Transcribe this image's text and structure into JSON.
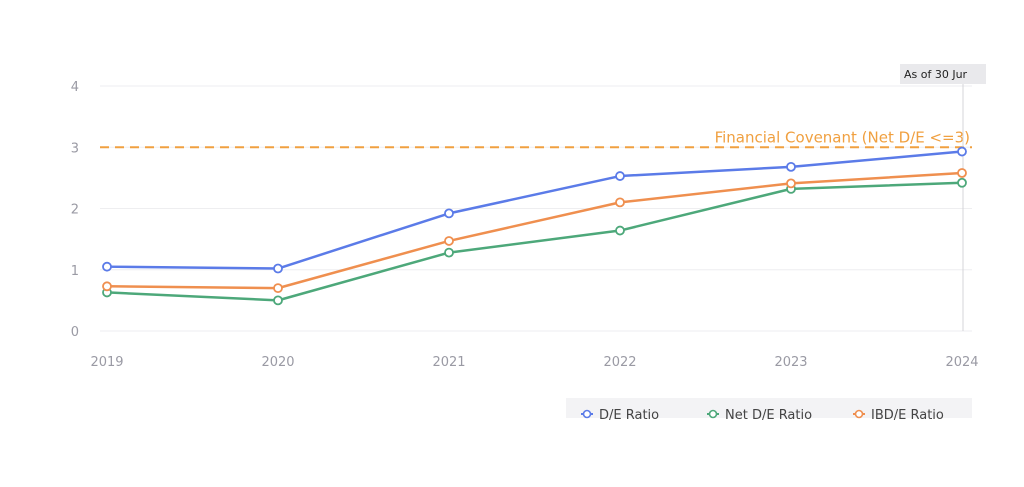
{
  "chart_data": {
    "type": "line",
    "title": "",
    "xlabel": "",
    "ylabel": "",
    "x": [
      "2019",
      "2020",
      "2021",
      "2022",
      "2023",
      "2024"
    ],
    "y_ticks": [
      "0",
      "1",
      "2",
      "3",
      "4"
    ],
    "ylim": [
      0,
      4
    ],
    "grid": true,
    "legend_position": "bottom-right",
    "series": [
      {
        "name": "D/E Ratio",
        "values": [
          1.05,
          1.02,
          1.92,
          2.53,
          2.68,
          2.93
        ],
        "color": "#5b7be8"
      },
      {
        "name": "Net D/E Ratio",
        "values": [
          0.63,
          0.5,
          1.28,
          1.64,
          2.32,
          2.42
        ],
        "color": "#4da87a"
      },
      {
        "name": "IBD/E Ratio",
        "values": [
          0.73,
          0.7,
          1.47,
          2.1,
          2.41,
          2.58
        ],
        "color": "#ef8f4f"
      }
    ],
    "reference_line": {
      "label": "Financial Covenant (Net D/E <=3)",
      "value": 3,
      "color": "#f0a040"
    },
    "annotation": {
      "label": "As of 30 Jur"
    }
  }
}
